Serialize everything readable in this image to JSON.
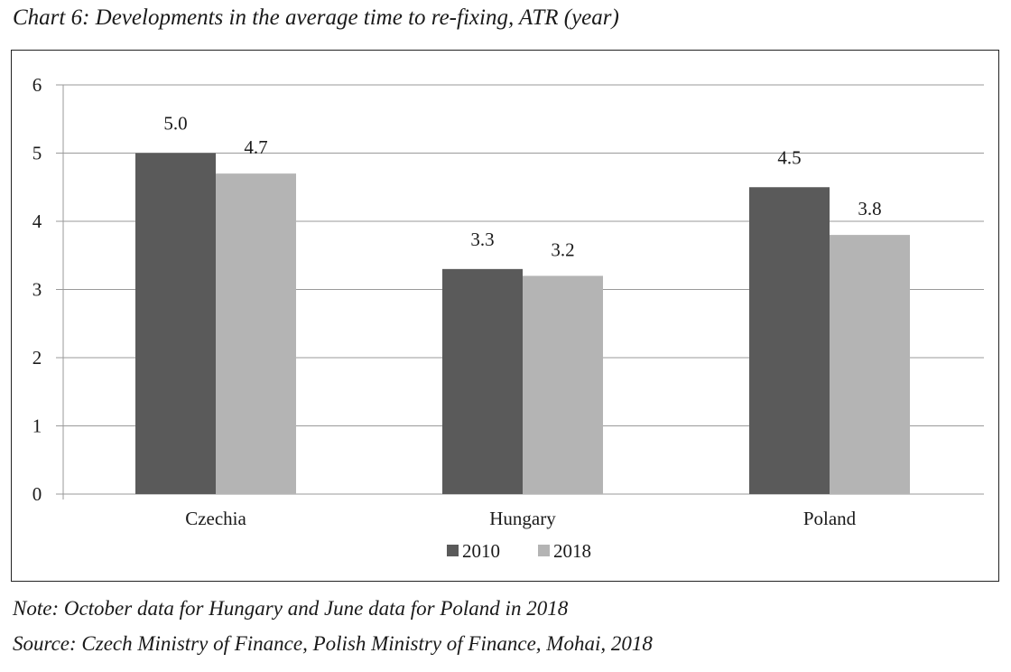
{
  "title": "Chart 6: Developments in the average time to re-fixing, ATR (year)",
  "note": "Note: October data for Hungary and June data for Poland in 2018",
  "source": "Source: Czech Ministry of Finance, Polish Ministry of Finance, Mohai, 2018",
  "colors": {
    "series_2010": "#5a5a5a",
    "series_2018": "#b4b4b4",
    "grid": "#9a9a9a",
    "frame": "#222222"
  },
  "chart_data": {
    "type": "bar",
    "title": "Chart 6: Developments in the average time to re-fixing, ATR (year)",
    "xlabel": "",
    "ylabel": "",
    "categories": [
      "Czechia",
      "Hungary",
      "Poland"
    ],
    "series": [
      {
        "name": "2010",
        "values": [
          5.0,
          3.3,
          4.5
        ],
        "labels": [
          "5.0",
          "3.3",
          "4.5"
        ]
      },
      {
        "name": "2018",
        "values": [
          4.7,
          3.2,
          3.8
        ],
        "labels": [
          "4.7",
          "3.2",
          "3.8"
        ]
      }
    ],
    "ylim": [
      0,
      6
    ],
    "yticks": [
      0,
      1,
      2,
      3,
      4,
      5,
      6
    ],
    "grid": true,
    "legend": "bottom-center"
  }
}
